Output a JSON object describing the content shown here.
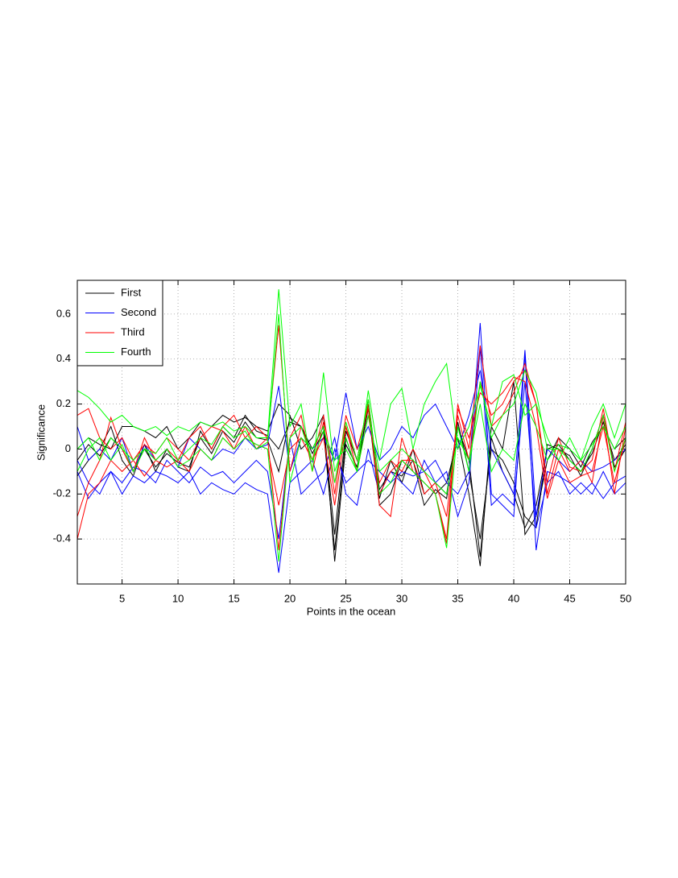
{
  "chart_data": {
    "type": "line",
    "xlabel": "Points in the ocean",
    "ylabel": "Significance",
    "x": [
      1,
      2,
      3,
      4,
      5,
      6,
      7,
      8,
      9,
      10,
      11,
      12,
      13,
      14,
      15,
      16,
      17,
      18,
      19,
      20,
      21,
      22,
      23,
      24,
      25,
      26,
      27,
      28,
      29,
      30,
      31,
      32,
      33,
      34,
      35,
      36,
      37,
      38,
      39,
      40,
      41,
      42,
      43,
      44,
      45,
      46,
      47,
      48,
      49,
      50
    ],
    "xlim": [
      1,
      50
    ],
    "xticks": [
      5,
      10,
      15,
      20,
      25,
      30,
      35,
      40,
      45,
      50
    ],
    "ylim": [
      -0.6,
      0.75
    ],
    "yticks": [
      -0.4,
      -0.2,
      0,
      0.2,
      0.4,
      0.6
    ],
    "grid": true,
    "legend_position": "upper left",
    "series": [
      {
        "name": "First",
        "color": "#000000",
        "lines": [
          [
            -0.05,
            0.02,
            -0.03,
            0.05,
            0.0,
            -0.1,
            0.0,
            -0.08,
            -0.02,
            -0.06,
            -0.08,
            0.05,
            -0.02,
            0.08,
            0.03,
            0.12,
            0.05,
            0.04,
            -0.1,
            0.14,
            0.1,
            -0.02,
            0.08,
            -0.45,
            0.05,
            -0.1,
            0.2,
            -0.22,
            -0.05,
            -0.15,
            0.0,
            -0.2,
            -0.15,
            -0.2,
            0.1,
            -0.05,
            -0.48,
            0.05,
            -0.1,
            -0.2,
            -0.35,
            -0.25,
            0.0,
            0.02,
            -0.05,
            -0.1,
            -0.02,
            0.12,
            -0.05,
            0.02
          ],
          [
            -0.12,
            -0.05,
            0.0,
            0.1,
            -0.05,
            -0.12,
            0.02,
            -0.1,
            0.0,
            -0.08,
            -0.1,
            0.08,
            0.0,
            0.1,
            0.05,
            0.15,
            0.08,
            0.06,
            0.0,
            0.12,
            0.1,
            0.0,
            0.1,
            -0.38,
            0.08,
            -0.05,
            0.22,
            -0.18,
            -0.1,
            -0.12,
            -0.05,
            -0.25,
            -0.18,
            -0.22,
            0.12,
            -0.1,
            -0.4,
            0.0,
            -0.05,
            -0.15,
            -0.3,
            -0.35,
            0.02,
            0.0,
            -0.03,
            -0.12,
            0.0,
            0.15,
            -0.08,
            0.0
          ],
          [
            0.0,
            0.05,
            0.02,
            0.0,
            0.1,
            0.1,
            0.08,
            0.05,
            0.1,
            0.0,
            0.05,
            0.12,
            0.1,
            0.15,
            0.12,
            0.14,
            0.1,
            0.08,
            0.2,
            0.15,
            0.0,
            0.05,
            0.15,
            -0.5,
            0.02,
            -0.08,
            0.18,
            -0.25,
            -0.2,
            -0.05,
            -0.1,
            -0.15,
            -0.2,
            -0.15,
            0.05,
            -0.2,
            -0.52,
            0.1,
            0.0,
            0.3,
            -0.38,
            -0.3,
            -0.05,
            0.05,
            0.0,
            -0.08,
            0.03,
            0.1,
            0.0,
            0.05
          ]
        ]
      },
      {
        "name": "Second",
        "color": "#0000ff",
        "lines": [
          [
            -0.1,
            -0.22,
            -0.15,
            -0.1,
            -0.2,
            -0.12,
            -0.15,
            -0.1,
            -0.12,
            -0.15,
            -0.1,
            -0.2,
            -0.15,
            -0.18,
            -0.2,
            -0.15,
            -0.18,
            -0.2,
            -0.55,
            -0.15,
            -0.1,
            -0.05,
            -0.2,
            0.0,
            -0.15,
            -0.1,
            -0.05,
            -0.1,
            -0.15,
            -0.1,
            -0.12,
            -0.1,
            -0.05,
            -0.15,
            -0.2,
            -0.1,
            0.56,
            -0.2,
            -0.25,
            -0.3,
            0.42,
            -0.45,
            -0.1,
            -0.12,
            -0.15,
            -0.2,
            -0.15,
            -0.22,
            -0.15,
            -0.12
          ],
          [
            0.1,
            -0.05,
            0.0,
            -0.05,
            0.05,
            -0.1,
            0.02,
            -0.05,
            0.0,
            -0.08,
            0.05,
            0.0,
            -0.05,
            0.0,
            -0.02,
            0.05,
            0.0,
            0.02,
            0.28,
            -0.1,
            0.05,
            0.0,
            0.05,
            -0.05,
            0.25,
            0.0,
            0.1,
            -0.05,
            0.0,
            0.1,
            0.05,
            0.15,
            0.2,
            0.1,
            0.0,
            0.15,
            0.35,
            0.0,
            -0.1,
            -0.2,
            0.44,
            -0.3,
            0.0,
            -0.05,
            -0.1,
            -0.05,
            -0.1,
            -0.08,
            -0.05,
            0.0
          ],
          [
            -0.05,
            -0.15,
            -0.2,
            -0.1,
            -0.15,
            -0.08,
            -0.1,
            -0.15,
            -0.05,
            -0.1,
            -0.15,
            -0.08,
            -0.12,
            -0.1,
            -0.15,
            -0.1,
            -0.05,
            -0.1,
            -0.4,
            0.05,
            -0.2,
            -0.15,
            -0.1,
            0.05,
            -0.2,
            -0.25,
            0.0,
            -0.2,
            -0.1,
            -0.15,
            -0.2,
            -0.05,
            -0.15,
            -0.1,
            -0.3,
            -0.15,
            0.45,
            -0.25,
            -0.2,
            -0.25,
            0.3,
            -0.35,
            -0.15,
            -0.1,
            -0.2,
            -0.15,
            -0.2,
            -0.1,
            -0.2,
            -0.15
          ]
        ]
      },
      {
        "name": "Third",
        "color": "#ff0000",
        "lines": [
          [
            -0.4,
            -0.2,
            -0.15,
            -0.05,
            -0.1,
            -0.05,
            -0.12,
            -0.05,
            -0.08,
            -0.05,
            -0.1,
            0.0,
            -0.05,
            0.05,
            0.0,
            0.1,
            0.0,
            0.05,
            0.55,
            -0.1,
            0.1,
            -0.05,
            0.15,
            -0.15,
            0.1,
            -0.05,
            0.2,
            -0.25,
            -0.3,
            0.05,
            -0.1,
            -0.15,
            -0.2,
            -0.4,
            0.2,
            0.0,
            0.46,
            0.1,
            0.15,
            0.25,
            0.38,
            0.2,
            -0.2,
            0.0,
            -0.1,
            -0.05,
            -0.15,
            0.15,
            -0.2,
            0.1
          ],
          [
            -0.3,
            -0.15,
            -0.05,
            0.14,
            0.0,
            -0.1,
            0.05,
            -0.05,
            0.0,
            -0.05,
            0.05,
            0.1,
            0.0,
            0.1,
            0.15,
            0.05,
            0.1,
            0.05,
            -0.45,
            0.05,
            0.15,
            -0.1,
            0.12,
            -0.2,
            0.15,
            0.0,
            0.18,
            -0.2,
            -0.1,
            -0.05,
            -0.05,
            -0.2,
            -0.15,
            -0.3,
            0.15,
            -0.05,
            0.3,
            0.15,
            0.2,
            0.3,
            0.35,
            0.2,
            -0.15,
            0.05,
            -0.08,
            -0.1,
            -0.05,
            0.18,
            -0.1,
            0.12
          ],
          [
            0.15,
            0.18,
            0.05,
            0.0,
            0.05,
            -0.05,
            0.02,
            -0.02,
            0.05,
            0.0,
            -0.05,
            0.05,
            0.1,
            0.08,
            0.0,
            0.05,
            0.02,
            0.0,
            -0.25,
            0.0,
            0.05,
            -0.05,
            0.05,
            -0.25,
            0.1,
            -0.1,
            0.15,
            -0.15,
            -0.05,
            -0.1,
            0.0,
            -0.1,
            -0.2,
            -0.42,
            0.18,
            0.05,
            0.25,
            0.2,
            0.25,
            0.32,
            0.3,
            0.1,
            -0.22,
            -0.05,
            -0.15,
            -0.12,
            -0.1,
            0.1,
            -0.15,
            0.05
          ]
        ]
      },
      {
        "name": "Fourth",
        "color": "#00ff00",
        "lines": [
          [
            0.26,
            0.23,
            0.18,
            0.12,
            0.15,
            0.1,
            0.08,
            0.1,
            0.06,
            0.1,
            0.08,
            0.12,
            0.1,
            0.12,
            0.08,
            0.1,
            0.05,
            0.05,
            0.71,
            0.1,
            0.2,
            -0.1,
            0.34,
            -0.1,
            0.05,
            -0.1,
            0.26,
            -0.05,
            0.2,
            0.27,
            0.0,
            0.2,
            0.3,
            0.38,
            0.0,
            0.1,
            0.28,
            0.1,
            0.3,
            0.33,
            0.15,
            0.2,
            0.05,
            -0.05,
            0.05,
            -0.05,
            0.1,
            0.2,
            0.05,
            0.2
          ],
          [
            0.0,
            0.05,
            -0.05,
            0.05,
            0.0,
            -0.05,
            0.0,
            -0.02,
            0.05,
            -0.05,
            0.0,
            0.05,
            0.02,
            0.1,
            0.05,
            0.08,
            0.0,
            0.03,
            0.6,
            -0.15,
            0.05,
            0.0,
            0.1,
            -0.15,
            0.12,
            -0.05,
            0.22,
            -0.2,
            -0.15,
            -0.05,
            -0.1,
            -0.15,
            -0.2,
            -0.44,
            0.1,
            -0.1,
            0.3,
            0.05,
            0.15,
            0.2,
            0.35,
            0.25,
            0.0,
            0.0,
            -0.05,
            -0.1,
            0.0,
            0.15,
            -0.1,
            0.05
          ],
          [
            -0.1,
            0.0,
            0.05,
            -0.05,
            0.02,
            -0.1,
            0.0,
            -0.05,
            0.0,
            -0.08,
            -0.05,
            0.0,
            -0.05,
            0.05,
            0.0,
            0.05,
            0.02,
            0.0,
            -0.5,
            0.05,
            0.1,
            -0.05,
            0.08,
            -0.05,
            0.0,
            -0.1,
            0.15,
            -0.1,
            -0.05,
            0.0,
            -0.05,
            -0.1,
            -0.15,
            -0.2,
            0.05,
            -0.05,
            0.2,
            -0.1,
            0.0,
            -0.05,
            0.2,
            0.1,
            -0.05,
            0.02,
            0.0,
            -0.05,
            0.02,
            0.1,
            0.0,
            0.1
          ]
        ]
      }
    ]
  }
}
